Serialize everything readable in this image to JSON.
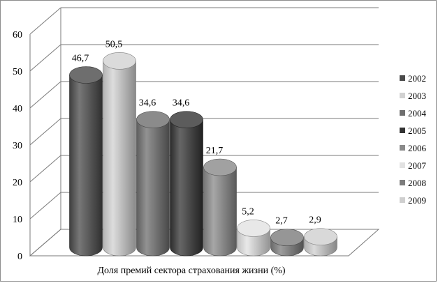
{
  "chart_data": {
    "type": "bar",
    "title": "",
    "xlabel": "Доля премий сектора страхования жизни (%)",
    "ylabel": "",
    "ylim": [
      0,
      60
    ],
    "yticks": [
      "0",
      "10",
      "20",
      "30",
      "40",
      "50",
      "60"
    ],
    "grid": true,
    "legend_position": "right",
    "series": [
      {
        "name": "2002",
        "value": 46.7,
        "label": "46,7",
        "color": "#4a4a4a"
      },
      {
        "name": "2003",
        "value": 50.5,
        "label": "50,5",
        "color": "#d2d2d2"
      },
      {
        "name": "2004",
        "value": 34.6,
        "label": "34,6",
        "color": "#6e6e6e"
      },
      {
        "name": "2005",
        "value": 34.6,
        "label": "34,6",
        "color": "#333333"
      },
      {
        "name": "2006",
        "value": 21.7,
        "label": "21,7",
        "color": "#8a8a8a"
      },
      {
        "name": "2007",
        "value": 5.2,
        "label": "5,2",
        "color": "#e2e2e2"
      },
      {
        "name": "2008",
        "value": 2.7,
        "label": "2,7",
        "color": "#7c7c7c"
      },
      {
        "name": "2009",
        "value": 2.9,
        "label": "2,9",
        "color": "#cfcfcf"
      }
    ]
  }
}
